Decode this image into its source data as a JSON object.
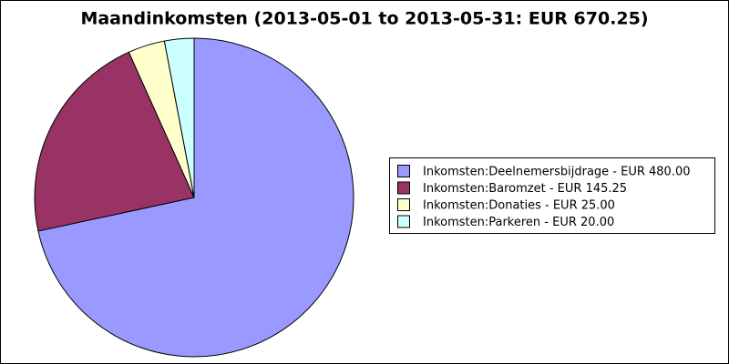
{
  "chart_data": {
    "type": "pie",
    "title": "Maandinkomsten (2013-05-01 to 2013-05-31: EUR 670.25)",
    "categories": [
      "Inkomsten:Deelnemersbijdrage - EUR 480.00",
      "Inkomsten:Baromzet - EUR 145.25",
      "Inkomsten:Donaties - EUR 25.00",
      "Inkomsten:Parkeren - EUR 20.00"
    ],
    "values": [
      480,
      145.25,
      25,
      20
    ],
    "colors": [
      "#9999ff",
      "#993366",
      "#ffffcc",
      "#ccffff"
    ],
    "legend": "right"
  }
}
